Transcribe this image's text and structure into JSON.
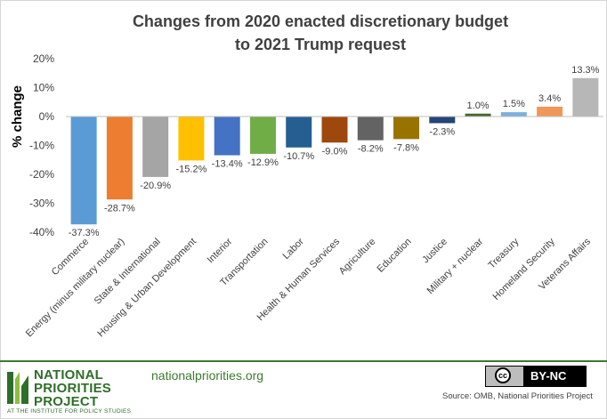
{
  "title_line1": "Changes from 2020 enacted discretionary budget",
  "title_line2": "to 2021 Trump request",
  "footer": {
    "logo_line1": "NATIONAL",
    "logo_line2": "PRIORITIES",
    "logo_line3": "PROJECT",
    "logo_sub": "AT THE INSTITUTE FOR POLICY STUDIES",
    "website": "nationalpriorities.org",
    "license": "BY-NC",
    "license_icon": "cc-icon",
    "source": "Source: OMB, National Priorities Project"
  },
  "chart_data": {
    "type": "bar",
    "title": "Changes from 2020 enacted discretionary budget to 2021 Trump request",
    "xlabel": "",
    "ylabel": "% change",
    "ylim": [
      -40,
      20
    ],
    "yticks": [
      "20%",
      "10%",
      "0%",
      "-10%",
      "-20%",
      "-30%",
      "-40%"
    ],
    "grid": false,
    "legend": "none",
    "categories": [
      "Commerce",
      "Energy (minus military nuclear)",
      "State & International",
      "Housing & Urban Development",
      "Interior",
      "Transportation",
      "Labor",
      "Health & Human Services",
      "Agriculture",
      "Education",
      "Justice",
      "Military + nuclear",
      "Treasury",
      "Homeland Security",
      "Veterans Affairs"
    ],
    "values": [
      -37.3,
      -28.7,
      -20.9,
      -15.2,
      -13.4,
      -12.9,
      -10.7,
      -9.0,
      -8.2,
      -7.8,
      -2.3,
      1.0,
      1.5,
      3.4,
      13.3
    ],
    "labels": [
      "-37.3%",
      "-28.7%",
      "-20.9%",
      "-15.2%",
      "-13.4%",
      "-12.9%",
      "-10.7%",
      "-9.0%",
      "-8.2%",
      "-7.8%",
      "-2.3%",
      "1.0%",
      "1.5%",
      "3.4%",
      "13.3%"
    ],
    "colors": [
      "#5b9bd5",
      "#ed7d31",
      "#a5a5a5",
      "#ffc000",
      "#4472c4",
      "#70ad47",
      "#255e91",
      "#9e480e",
      "#636363",
      "#997300",
      "#264478",
      "#43682b",
      "#7cafdd",
      "#f1975a",
      "#b7b7b7"
    ]
  }
}
